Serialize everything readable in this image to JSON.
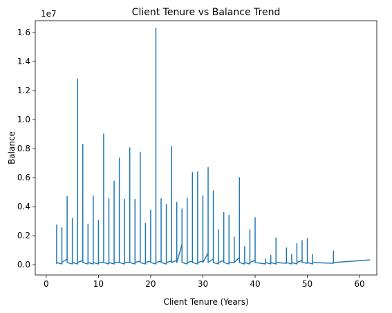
{
  "chart_data": {
    "type": "line",
    "title": "Client Tenure vs Balance Trend",
    "xlabel": "Client Tenure (Years)",
    "ylabel": "Balance",
    "y_offset_label": "1e7",
    "color": "#1f77b4",
    "xlim": [
      -2.1,
      63.3
    ],
    "ylim": [
      -710000,
      16810000
    ],
    "xticks": [
      0,
      10,
      20,
      30,
      40,
      50,
      60
    ],
    "yticks": [
      {
        "value": 0,
        "label": "0.0"
      },
      {
        "value": 2000000,
        "label": "0.2"
      },
      {
        "value": 4000000,
        "label": "0.4"
      },
      {
        "value": 6000000,
        "label": "0.6"
      },
      {
        "value": 8000000,
        "label": "0.8"
      },
      {
        "value": 10000000,
        "label": "1.0"
      },
      {
        "value": 12000000,
        "label": "1.2"
      },
      {
        "value": 14000000,
        "label": "1.4"
      },
      {
        "value": 16000000,
        "label": "1.6"
      }
    ],
    "x": [
      2,
      2,
      2,
      3,
      3,
      3,
      4,
      4,
      4,
      5,
      5,
      5,
      6,
      6,
      6,
      7,
      7,
      7,
      8,
      8,
      8,
      9,
      9,
      9,
      10,
      10,
      10,
      11,
      11,
      11,
      12,
      12,
      12,
      13,
      13,
      13,
      14,
      14,
      14,
      15,
      15,
      15,
      16,
      16,
      16,
      17,
      17,
      17,
      18,
      18,
      18,
      19,
      19,
      19,
      20,
      20,
      20,
      21,
      21,
      21,
      22,
      22,
      22,
      23,
      23,
      23,
      24,
      24,
      24,
      25,
      25,
      25,
      26,
      26,
      26,
      27,
      27,
      27,
      28,
      28,
      28,
      29,
      29,
      29,
      30,
      30,
      30,
      31,
      31,
      31,
      32,
      32,
      32,
      33,
      33,
      33,
      34,
      34,
      34,
      35,
      35,
      35,
      36,
      36,
      36,
      37,
      37,
      37,
      38,
      38,
      38,
      39,
      39,
      39,
      40,
      40,
      40,
      42,
      42,
      42,
      43,
      43,
      43,
      44,
      44,
      44,
      46,
      46,
      46,
      47,
      47,
      47,
      48,
      48,
      48,
      49,
      49,
      49,
      50,
      50,
      50,
      51,
      51,
      51,
      55,
      55,
      55,
      62
    ],
    "series": [
      {
        "name": "Balance",
        "values": [
          50000,
          2750000,
          150000,
          50000,
          2550000,
          150000,
          400000,
          4700000,
          150000,
          50000,
          3200000,
          150000,
          50000,
          12800000,
          150000,
          300000,
          8300000,
          150000,
          50000,
          2800000,
          150000,
          50000,
          4750000,
          150000,
          50000,
          3050000,
          150000,
          150000,
          9000000,
          150000,
          50000,
          4550000,
          150000,
          50000,
          5750000,
          150000,
          150000,
          7350000,
          150000,
          50000,
          4500000,
          150000,
          150000,
          8050000,
          150000,
          50000,
          4500000,
          150000,
          250000,
          7750000,
          150000,
          50000,
          2850000,
          150000,
          250000,
          3750000,
          150000,
          50000,
          16300000,
          150000,
          250000,
          4550000,
          150000,
          50000,
          4150000,
          150000,
          250000,
          8150000,
          150000,
          300000,
          4300000,
          150000,
          1400000,
          3850000,
          150000,
          50000,
          4600000,
          150000,
          250000,
          6350000,
          150000,
          50000,
          6400000,
          150000,
          250000,
          4750000,
          150000,
          800000,
          6700000,
          150000,
          400000,
          5100000,
          150000,
          50000,
          2400000,
          150000,
          300000,
          3600000,
          150000,
          50000,
          3400000,
          150000,
          150000,
          1900000,
          150000,
          500000,
          6000000,
          150000,
          50000,
          1250000,
          150000,
          50000,
          2400000,
          150000,
          300000,
          3250000,
          150000,
          50000,
          400000,
          150000,
          50000,
          650000,
          150000,
          50000,
          1850000,
          150000,
          100000,
          1150000,
          150000,
          50000,
          700000,
          150000,
          50000,
          1450000,
          150000,
          300000,
          1650000,
          150000,
          100000,
          1800000,
          150000,
          50000,
          700000,
          150000,
          100000,
          950000,
          150000,
          330000
        ]
      }
    ]
  }
}
